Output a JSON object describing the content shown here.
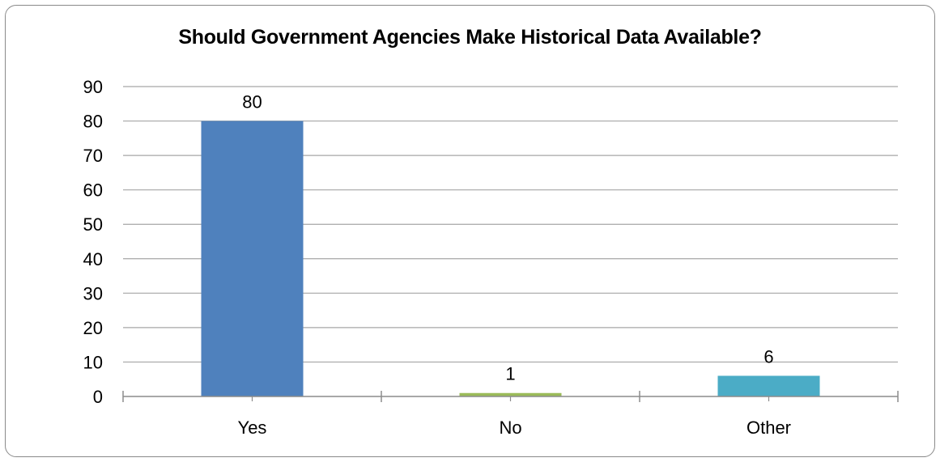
{
  "chart_data": {
    "type": "bar",
    "title": "Should Government Agencies Make Historical Data Available?",
    "categories": [
      "Yes",
      "No",
      "Other"
    ],
    "values": [
      80,
      1,
      6
    ],
    "data_labels": [
      "80",
      "1",
      "6"
    ],
    "series": [
      {
        "values": [
          80,
          1,
          6
        ],
        "colors": [
          "#4f81bd",
          "#9bbb59",
          "#4bacc6"
        ]
      }
    ],
    "ylim": [
      0,
      90
    ],
    "yticks": [
      0,
      10,
      20,
      30,
      40,
      50,
      60,
      70,
      80,
      90
    ],
    "grid": true,
    "legend": "none",
    "xlabel": "",
    "ylabel": ""
  }
}
